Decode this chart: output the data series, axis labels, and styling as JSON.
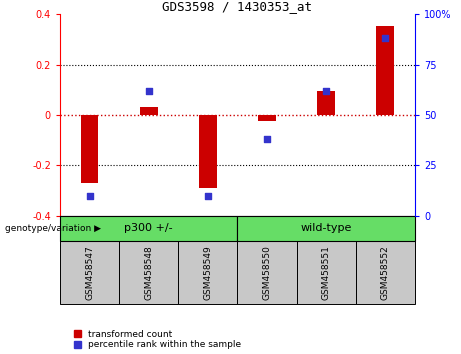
{
  "title": "GDS3598 / 1430353_at",
  "samples": [
    "GSM458547",
    "GSM458548",
    "GSM458549",
    "GSM458550",
    "GSM458551",
    "GSM458552"
  ],
  "bar_values": [
    -0.27,
    0.03,
    -0.29,
    -0.025,
    0.095,
    0.355
  ],
  "dot_values_normalized": [
    10,
    62,
    10,
    38,
    62,
    88
  ],
  "ylim_left": [
    -0.4,
    0.4
  ],
  "ylim_right": [
    0,
    100
  ],
  "yticks_left": [
    -0.4,
    -0.2,
    0.0,
    0.2,
    0.4
  ],
  "yticks_right": [
    0,
    25,
    50,
    75,
    100
  ],
  "ytick_labels_left": [
    "-0.4",
    "-0.2",
    "0",
    "0.2",
    "0.4"
  ],
  "ytick_labels_right": [
    "0",
    "25",
    "50",
    "75",
    "100%"
  ],
  "bar_color": "#cc0000",
  "dot_color": "#3333cc",
  "zero_line_color": "#cc0000",
  "label_bg_color": "#c8c8c8",
  "group_color": "#66dd66",
  "legend_items": [
    "transformed count",
    "percentile rank within the sample"
  ],
  "group_defs": [
    {
      "name": "p300 +/-",
      "start": 0,
      "end": 3
    },
    {
      "name": "wild-type",
      "start": 3,
      "end": 6
    }
  ],
  "bar_width": 0.3,
  "dot_size": 22
}
